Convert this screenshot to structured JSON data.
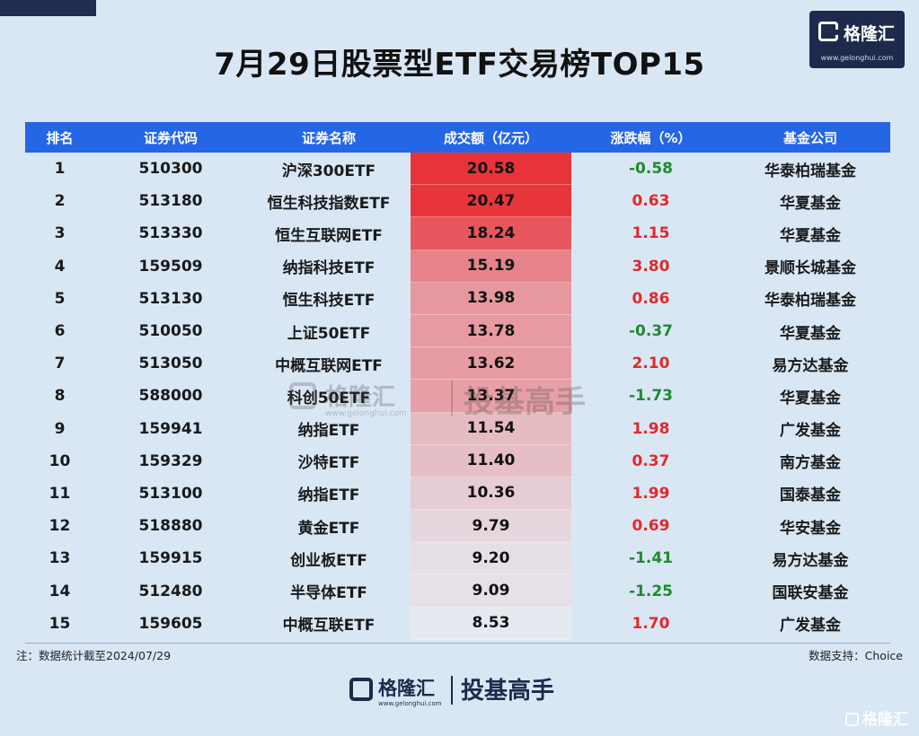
{
  "title": "7月29日股票型ETF交易榜TOP15",
  "logo": {
    "brand": "格隆汇",
    "url": "www.gelonghui.com"
  },
  "columns": [
    "排名",
    "证券代码",
    "证券名称",
    "成交额（亿元）",
    "涨跌幅（%）",
    "基金公司"
  ],
  "rows": [
    {
      "rank": "1",
      "code": "510300",
      "name": "沪深300ETF",
      "volume": "20.58",
      "change": "-0.58",
      "company": "华泰柏瑞基金"
    },
    {
      "rank": "2",
      "code": "513180",
      "name": "恒生科技指数ETF",
      "volume": "20.47",
      "change": "0.63",
      "company": "华夏基金"
    },
    {
      "rank": "3",
      "code": "513330",
      "name": "恒生互联网ETF",
      "volume": "18.24",
      "change": "1.15",
      "company": "华夏基金"
    },
    {
      "rank": "4",
      "code": "159509",
      "name": "纳指科技ETF",
      "volume": "15.19",
      "change": "3.80",
      "company": "景顺长城基金"
    },
    {
      "rank": "5",
      "code": "513130",
      "name": "恒生科技ETF",
      "volume": "13.98",
      "change": "0.86",
      "company": "华泰柏瑞基金"
    },
    {
      "rank": "6",
      "code": "510050",
      "name": "上证50ETF",
      "volume": "13.78",
      "change": "-0.37",
      "company": "华夏基金"
    },
    {
      "rank": "7",
      "code": "513050",
      "name": "中概互联网ETF",
      "volume": "13.62",
      "change": "2.10",
      "company": "易方达基金"
    },
    {
      "rank": "8",
      "code": "588000",
      "name": "科创50ETF",
      "volume": "13.37",
      "change": "-1.73",
      "company": "华夏基金"
    },
    {
      "rank": "9",
      "code": "159941",
      "name": "纳指ETF",
      "volume": "11.54",
      "change": "1.98",
      "company": "广发基金"
    },
    {
      "rank": "10",
      "code": "159329",
      "name": "沙特ETF",
      "volume": "11.40",
      "change": "0.37",
      "company": "南方基金"
    },
    {
      "rank": "11",
      "code": "513100",
      "name": "纳指ETF",
      "volume": "10.36",
      "change": "1.99",
      "company": "国泰基金"
    },
    {
      "rank": "12",
      "code": "518880",
      "name": "黄金ETF",
      "volume": "9.79",
      "change": "0.69",
      "company": "华安基金"
    },
    {
      "rank": "13",
      "code": "159915",
      "name": "创业板ETF",
      "volume": "9.20",
      "change": "-1.41",
      "company": "易方达基金"
    },
    {
      "rank": "14",
      "code": "512480",
      "name": "半导体ETF",
      "volume": "9.09",
      "change": "-1.25",
      "company": "国联安基金"
    },
    {
      "rank": "15",
      "code": "159605",
      "name": "中概互联ETF",
      "volume": "8.53",
      "change": "1.70",
      "company": "广发基金"
    }
  ],
  "watermark": {
    "brand": "格隆汇",
    "url": "www.gelonghui.com",
    "slogan": "投基高手"
  },
  "note_left": "注：数据统计截至2024/07/29",
  "note_right": "数据支持：Choice",
  "footer": {
    "brand": "格隆汇",
    "url": "www.gelonghui.com",
    "slogan": "投基高手"
  },
  "corner_watermark": "格隆汇",
  "colors": {
    "header": "#2466e6",
    "background": "#d9e7f5",
    "positive": "#e02a2a",
    "negative": "#1f8a2e",
    "heat_high": "#e8333a",
    "heat_low": "#e6e9f0"
  }
}
